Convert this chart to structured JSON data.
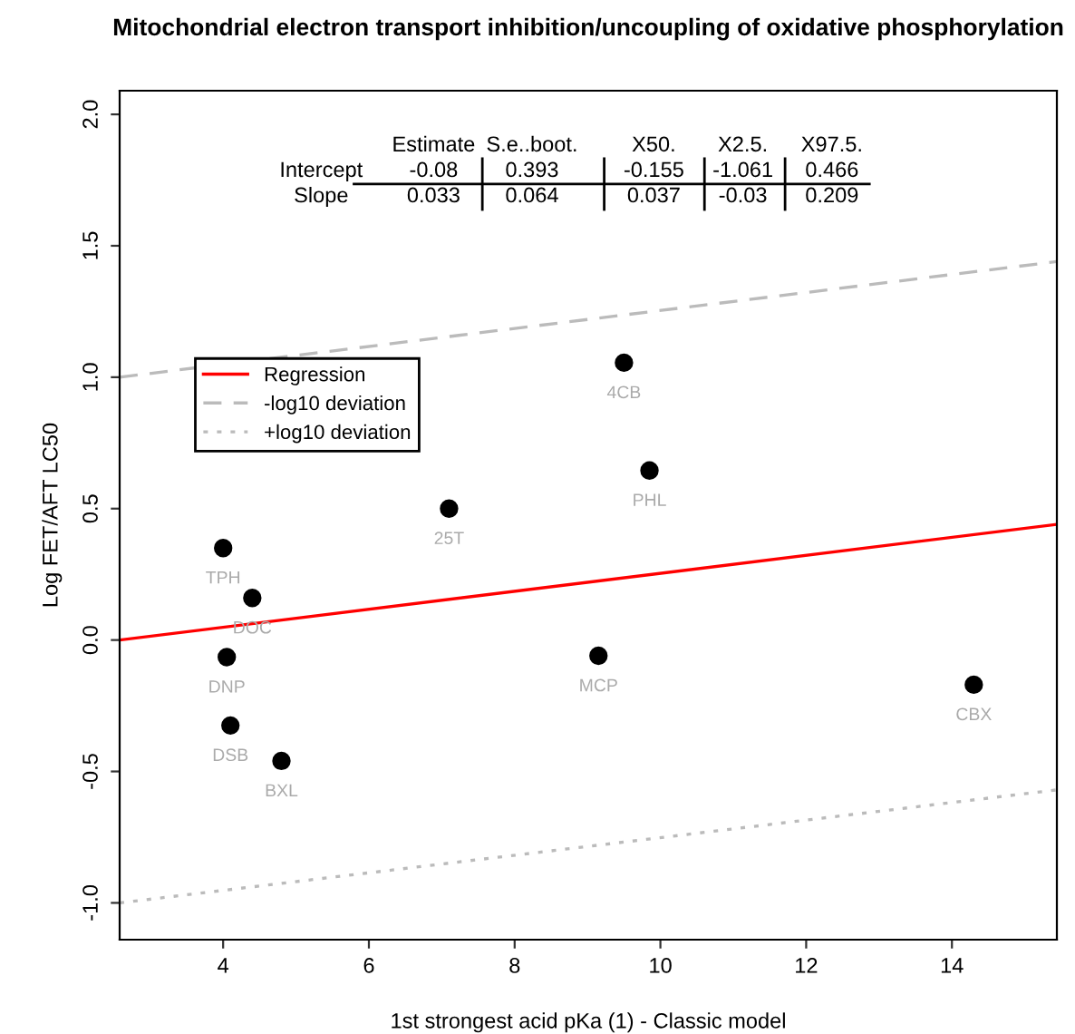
{
  "chart_data": {
    "type": "scatter",
    "title": "Mitochondrial electron transport inhibition/uncoupling of oxidative phosphorylation",
    "xlabel": "1st strongest acid pKa (1) - Classic model",
    "ylabel": "Log FET/AFT LC50",
    "xlim": [
      2.58,
      15.44
    ],
    "xticks": [
      4,
      6,
      8,
      10,
      12,
      14
    ],
    "ylim": [
      -1.14,
      2.09
    ],
    "yticks": [
      {
        "value": -1,
        "label": "-1.0"
      },
      -0.5,
      {
        "value": 0,
        "label": "0.0"
      },
      0.5,
      {
        "value": 1,
        "label": "1.0"
      },
      1.5,
      {
        "value": 2,
        "label": "2.0"
      }
    ],
    "grid": false,
    "legend": "left",
    "series": [
      {
        "color": "#000000",
        "marker": "circle",
        "x": [
          4.0,
          4.4,
          4.05,
          4.1,
          4.8,
          7.1,
          9.5,
          9.85,
          9.15,
          14.3
        ],
        "values": [
          0.35,
          0.16,
          -0.065,
          -0.325,
          -0.46,
          0.5,
          1.055,
          0.645,
          -0.06,
          -0.17
        ]
      },
      {
        "type": "line",
        "name": "Regression",
        "color": "#ff0000",
        "line_style": "solid",
        "x": [
          2.58,
          15.44
        ],
        "values": [
          0.0,
          0.44
        ]
      },
      {
        "type": "line",
        "name": "-log10 deviation",
        "color": "#bbbbbb",
        "line_style": "dashed",
        "x": [
          2.58,
          15.44
        ],
        "values": [
          1.0,
          1.44
        ]
      },
      {
        "type": "line",
        "name": "+log10 deviation",
        "color": "#bbbbbb",
        "line_style": "dotted",
        "x": [
          2.58,
          15.44
        ],
        "values": [
          -1.0,
          -0.57
        ]
      }
    ],
    "annotations": [
      {
        "text": "TPH",
        "x": 4.0,
        "y": 0.35
      },
      {
        "text": "DOC",
        "x": 4.4,
        "y": 0.16
      },
      {
        "text": "DNP",
        "x": 4.05,
        "y": -0.065
      },
      {
        "text": "DSB",
        "x": 4.1,
        "y": -0.325
      },
      {
        "text": "BXL",
        "x": 4.8,
        "y": -0.46
      },
      {
        "text": "25T",
        "x": 7.1,
        "y": 0.5
      },
      {
        "text": "4CB",
        "x": 9.5,
        "y": 1.055
      },
      {
        "text": "PHL",
        "x": 9.85,
        "y": 0.645
      },
      {
        "text": "MCP",
        "x": 9.15,
        "y": -0.06
      },
      {
        "text": "CBX",
        "x": 14.3,
        "y": -0.17
      },
      "Estimate",
      "S.e..boot.",
      "X50.",
      "X2.5.",
      "X97.5.",
      "Intercept",
      "-0.08",
      "0.393",
      "-0.155",
      "-1.061",
      "0.466",
      "Slope",
      "0.033",
      "0.064",
      "0.037",
      "-0.03",
      "0.209"
    ]
  }
}
